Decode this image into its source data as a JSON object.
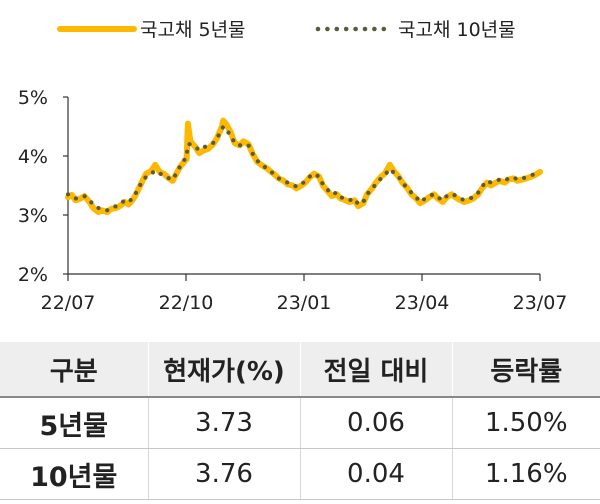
{
  "chart_data": {
    "type": "line",
    "x_ticks": [
      "22/07",
      "22/10",
      "23/01",
      "23/04",
      "23/07"
    ],
    "y_ticks": [
      "2%",
      "3%",
      "4%",
      "5%"
    ],
    "ylim": [
      2,
      5
    ],
    "xlim": [
      "2022-07-01",
      "2023-07-10"
    ],
    "series": [
      {
        "name": "국고채 5년물",
        "color": "#ffb800",
        "style": "solid",
        "points": [
          [
            "2022-07-01",
            3.3
          ],
          [
            "2022-07-04",
            3.34
          ],
          [
            "2022-07-07",
            3.25
          ],
          [
            "2022-07-11",
            3.28
          ],
          [
            "2022-07-14",
            3.32
          ],
          [
            "2022-07-18",
            3.22
          ],
          [
            "2022-07-21",
            3.12
          ],
          [
            "2022-07-25",
            3.05
          ],
          [
            "2022-07-28",
            3.08
          ],
          [
            "2022-08-01",
            3.05
          ],
          [
            "2022-08-04",
            3.1
          ],
          [
            "2022-08-08",
            3.12
          ],
          [
            "2022-08-11",
            3.15
          ],
          [
            "2022-08-15",
            3.22
          ],
          [
            "2022-08-18",
            3.18
          ],
          [
            "2022-08-22",
            3.28
          ],
          [
            "2022-08-25",
            3.4
          ],
          [
            "2022-08-29",
            3.58
          ],
          [
            "2022-09-01",
            3.7
          ],
          [
            "2022-09-05",
            3.75
          ],
          [
            "2022-09-08",
            3.85
          ],
          [
            "2022-09-12",
            3.72
          ],
          [
            "2022-09-15",
            3.7
          ],
          [
            "2022-09-19",
            3.62
          ],
          [
            "2022-09-22",
            3.58
          ],
          [
            "2022-09-26",
            3.75
          ],
          [
            "2022-09-29",
            3.85
          ],
          [
            "2022-10-03",
            3.95
          ],
          [
            "2022-10-04",
            4.55
          ],
          [
            "2022-10-06",
            4.25
          ],
          [
            "2022-10-10",
            4.15
          ],
          [
            "2022-10-13",
            4.05
          ],
          [
            "2022-10-17",
            4.1
          ],
          [
            "2022-10-20",
            4.12
          ],
          [
            "2022-10-24",
            4.2
          ],
          [
            "2022-10-27",
            4.3
          ],
          [
            "2022-10-31",
            4.5
          ],
          [
            "2022-11-01",
            4.6
          ],
          [
            "2022-11-03",
            4.55
          ],
          [
            "2022-11-07",
            4.4
          ],
          [
            "2022-11-10",
            4.22
          ],
          [
            "2022-11-14",
            4.18
          ],
          [
            "2022-11-17",
            4.25
          ],
          [
            "2022-11-21",
            4.2
          ],
          [
            "2022-11-24",
            4.05
          ],
          [
            "2022-11-28",
            3.9
          ],
          [
            "2022-12-01",
            3.85
          ],
          [
            "2022-12-05",
            3.8
          ],
          [
            "2022-12-08",
            3.75
          ],
          [
            "2022-12-12",
            3.68
          ],
          [
            "2022-12-15",
            3.62
          ],
          [
            "2022-12-19",
            3.58
          ],
          [
            "2022-12-22",
            3.52
          ],
          [
            "2022-12-26",
            3.5
          ],
          [
            "2022-12-29",
            3.45
          ],
          [
            "2023-01-02",
            3.5
          ],
          [
            "2023-01-05",
            3.55
          ],
          [
            "2023-01-09",
            3.65
          ],
          [
            "2023-01-12",
            3.7
          ],
          [
            "2023-01-16",
            3.65
          ],
          [
            "2023-01-19",
            3.5
          ],
          [
            "2023-01-23",
            3.4
          ],
          [
            "2023-01-26",
            3.32
          ],
          [
            "2023-01-30",
            3.35
          ],
          [
            "2023-02-02",
            3.28
          ],
          [
            "2023-02-06",
            3.25
          ],
          [
            "2023-02-09",
            3.22
          ],
          [
            "2023-02-13",
            3.25
          ],
          [
            "2023-02-16",
            3.15
          ],
          [
            "2023-02-20",
            3.2
          ],
          [
            "2023-02-23",
            3.35
          ],
          [
            "2023-02-27",
            3.45
          ],
          [
            "2023-03-02",
            3.55
          ],
          [
            "2023-03-06",
            3.65
          ],
          [
            "2023-03-09",
            3.7
          ],
          [
            "2023-03-13",
            3.85
          ],
          [
            "2023-03-16",
            3.75
          ],
          [
            "2023-03-20",
            3.65
          ],
          [
            "2023-03-23",
            3.55
          ],
          [
            "2023-03-27",
            3.45
          ],
          [
            "2023-03-30",
            3.35
          ],
          [
            "2023-04-03",
            3.28
          ],
          [
            "2023-04-06",
            3.2
          ],
          [
            "2023-04-10",
            3.25
          ],
          [
            "2023-04-13",
            3.3
          ],
          [
            "2023-04-17",
            3.35
          ],
          [
            "2023-04-20",
            3.28
          ],
          [
            "2023-04-24",
            3.22
          ],
          [
            "2023-04-27",
            3.3
          ],
          [
            "2023-05-01",
            3.35
          ],
          [
            "2023-05-04",
            3.3
          ],
          [
            "2023-05-08",
            3.25
          ],
          [
            "2023-05-11",
            3.22
          ],
          [
            "2023-05-15",
            3.25
          ],
          [
            "2023-05-18",
            3.28
          ],
          [
            "2023-05-22",
            3.35
          ],
          [
            "2023-05-25",
            3.45
          ],
          [
            "2023-05-29",
            3.55
          ],
          [
            "2023-06-01",
            3.5
          ],
          [
            "2023-06-05",
            3.55
          ],
          [
            "2023-06-08",
            3.58
          ],
          [
            "2023-06-12",
            3.55
          ],
          [
            "2023-06-15",
            3.6
          ],
          [
            "2023-06-19",
            3.62
          ],
          [
            "2023-06-22",
            3.58
          ],
          [
            "2023-06-26",
            3.6
          ],
          [
            "2023-06-29",
            3.62
          ],
          [
            "2023-07-03",
            3.65
          ],
          [
            "2023-07-06",
            3.68
          ],
          [
            "2023-07-10",
            3.73
          ]
        ]
      },
      {
        "name": "국고채 10년물",
        "color": "#5a5a3c",
        "style": "dotted",
        "points": [
          [
            "2022-07-01",
            3.35
          ],
          [
            "2022-07-04",
            3.3
          ],
          [
            "2022-07-07",
            3.28
          ],
          [
            "2022-07-11",
            3.3
          ],
          [
            "2022-07-14",
            3.32
          ],
          [
            "2022-07-18",
            3.25
          ],
          [
            "2022-07-21",
            3.18
          ],
          [
            "2022-07-25",
            3.12
          ],
          [
            "2022-07-28",
            3.1
          ],
          [
            "2022-08-01",
            3.08
          ],
          [
            "2022-08-04",
            3.12
          ],
          [
            "2022-08-08",
            3.15
          ],
          [
            "2022-08-11",
            3.18
          ],
          [
            "2022-08-15",
            3.25
          ],
          [
            "2022-08-18",
            3.22
          ],
          [
            "2022-08-22",
            3.3
          ],
          [
            "2022-08-25",
            3.42
          ],
          [
            "2022-08-29",
            3.58
          ],
          [
            "2022-09-01",
            3.65
          ],
          [
            "2022-09-05",
            3.7
          ],
          [
            "2022-09-08",
            3.75
          ],
          [
            "2022-09-12",
            3.7
          ],
          [
            "2022-09-15",
            3.68
          ],
          [
            "2022-09-19",
            3.62
          ],
          [
            "2022-09-22",
            3.6
          ],
          [
            "2022-09-26",
            3.75
          ],
          [
            "2022-09-29",
            3.88
          ],
          [
            "2022-10-03",
            3.98
          ],
          [
            "2022-10-04",
            4.2
          ],
          [
            "2022-10-06",
            4.2
          ],
          [
            "2022-10-10",
            4.15
          ],
          [
            "2022-10-13",
            4.1
          ],
          [
            "2022-10-17",
            4.15
          ],
          [
            "2022-10-20",
            4.18
          ],
          [
            "2022-10-24",
            4.22
          ],
          [
            "2022-10-27",
            4.3
          ],
          [
            "2022-10-31",
            4.45
          ],
          [
            "2022-11-01",
            4.5
          ],
          [
            "2022-11-03",
            4.45
          ],
          [
            "2022-11-07",
            4.35
          ],
          [
            "2022-11-10",
            4.22
          ],
          [
            "2022-11-14",
            4.18
          ],
          [
            "2022-11-17",
            4.2
          ],
          [
            "2022-11-21",
            4.18
          ],
          [
            "2022-11-24",
            4.05
          ],
          [
            "2022-11-28",
            3.92
          ],
          [
            "2022-12-01",
            3.85
          ],
          [
            "2022-12-05",
            3.8
          ],
          [
            "2022-12-08",
            3.75
          ],
          [
            "2022-12-12",
            3.68
          ],
          [
            "2022-12-15",
            3.62
          ],
          [
            "2022-12-19",
            3.58
          ],
          [
            "2022-12-22",
            3.55
          ],
          [
            "2022-12-26",
            3.52
          ],
          [
            "2022-12-29",
            3.48
          ],
          [
            "2023-01-02",
            3.52
          ],
          [
            "2023-01-05",
            3.58
          ],
          [
            "2023-01-09",
            3.66
          ],
          [
            "2023-01-12",
            3.7
          ],
          [
            "2023-01-16",
            3.65
          ],
          [
            "2023-01-19",
            3.52
          ],
          [
            "2023-01-23",
            3.42
          ],
          [
            "2023-01-26",
            3.35
          ],
          [
            "2023-01-30",
            3.38
          ],
          [
            "2023-02-02",
            3.3
          ],
          [
            "2023-02-06",
            3.28
          ],
          [
            "2023-02-09",
            3.25
          ],
          [
            "2023-02-13",
            3.28
          ],
          [
            "2023-02-16",
            3.18
          ],
          [
            "2023-02-20",
            3.22
          ],
          [
            "2023-02-23",
            3.35
          ],
          [
            "2023-02-27",
            3.45
          ],
          [
            "2023-03-02",
            3.52
          ],
          [
            "2023-03-06",
            3.62
          ],
          [
            "2023-03-09",
            3.68
          ],
          [
            "2023-03-13",
            3.78
          ],
          [
            "2023-03-16",
            3.72
          ],
          [
            "2023-03-20",
            3.65
          ],
          [
            "2023-03-23",
            3.55
          ],
          [
            "2023-03-27",
            3.45
          ],
          [
            "2023-03-30",
            3.38
          ],
          [
            "2023-04-03",
            3.3
          ],
          [
            "2023-04-06",
            3.22
          ],
          [
            "2023-04-10",
            3.28
          ],
          [
            "2023-04-13",
            3.32
          ],
          [
            "2023-04-17",
            3.35
          ],
          [
            "2023-04-20",
            3.3
          ],
          [
            "2023-04-24",
            3.25
          ],
          [
            "2023-04-27",
            3.32
          ],
          [
            "2023-05-01",
            3.36
          ],
          [
            "2023-05-04",
            3.33
          ],
          [
            "2023-05-08",
            3.28
          ],
          [
            "2023-05-11",
            3.25
          ],
          [
            "2023-05-15",
            3.28
          ],
          [
            "2023-05-18",
            3.3
          ],
          [
            "2023-05-22",
            3.38
          ],
          [
            "2023-05-25",
            3.48
          ],
          [
            "2023-05-29",
            3.58
          ],
          [
            "2023-06-01",
            3.55
          ],
          [
            "2023-06-05",
            3.58
          ],
          [
            "2023-06-08",
            3.6
          ],
          [
            "2023-06-12",
            3.58
          ],
          [
            "2023-06-15",
            3.62
          ],
          [
            "2023-06-19",
            3.64
          ],
          [
            "2023-06-22",
            3.6
          ],
          [
            "2023-06-26",
            3.62
          ],
          [
            "2023-06-29",
            3.64
          ],
          [
            "2023-07-03",
            3.67
          ],
          [
            "2023-07-06",
            3.7
          ],
          [
            "2023-07-10",
            3.76
          ]
        ]
      }
    ]
  },
  "table": {
    "headers": [
      "구분",
      "현재가(%)",
      "전일 대비",
      "등락률"
    ],
    "rows": [
      {
        "label": "5년물",
        "price": "3.73",
        "change": "0.06",
        "rate": "1.50%"
      },
      {
        "label": "10년물",
        "price": "3.76",
        "change": "0.04",
        "rate": "1.16%"
      }
    ]
  }
}
